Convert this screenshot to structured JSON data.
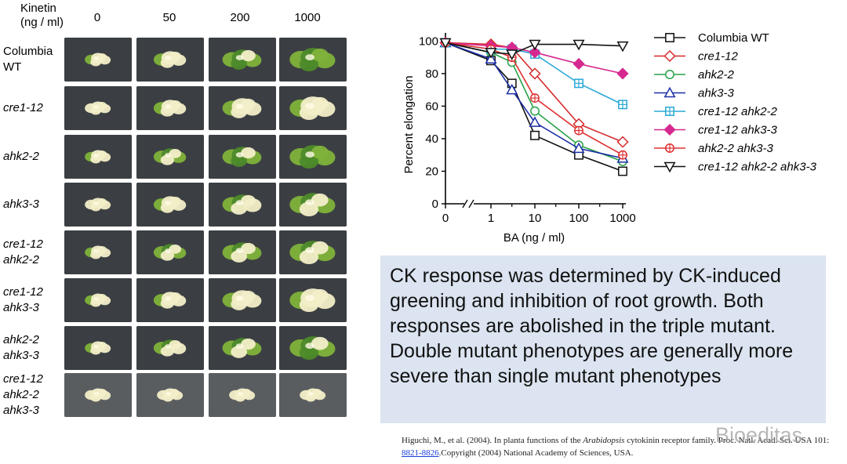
{
  "plate": {
    "header_line1": "Kinetin",
    "header_line2": "(ng / ml)",
    "columns": [
      "0",
      "50",
      "200",
      "1000"
    ],
    "rows": [
      {
        "line1": "Columbia",
        "line2": "WT",
        "italic": false
      },
      {
        "line1": "cre1-12",
        "italic": true
      },
      {
        "line1": "ahk2-2",
        "italic": true
      },
      {
        "line1": "ahk3-3",
        "italic": true
      },
      {
        "line1": "cre1-12",
        "line2": "ahk2-2",
        "italic": true
      },
      {
        "line1": "cre1-12",
        "line2": "ahk3-3",
        "italic": true
      },
      {
        "line1": "ahk2-2",
        "line2": "ahk3-3",
        "italic": true
      },
      {
        "line1": "cre1-12",
        "line2": "ahk2-2",
        "line3": "ahk3-3",
        "italic": true
      }
    ],
    "greening_levels": [
      [
        0.1,
        0.2,
        0.7,
        0.95
      ],
      [
        0.0,
        0.05,
        0.1,
        0.15
      ],
      [
        0.05,
        0.6,
        0.7,
        0.85
      ],
      [
        0.0,
        0.1,
        0.35,
        0.55
      ],
      [
        0.2,
        0.55,
        0.6,
        0.55
      ],
      [
        0.05,
        0.05,
        0.1,
        0.05
      ],
      [
        0.1,
        0.3,
        0.6,
        0.7
      ],
      [
        0.0,
        0.0,
        0.0,
        0.0
      ]
    ]
  },
  "chart_data": {
    "type": "line",
    "xlabel": "BA (ng / ml)",
    "ylabel": "Percent elongation",
    "x_ticks": [
      "0",
      "1",
      "10",
      "100",
      "1000"
    ],
    "y_ticks": [
      "0",
      "20",
      "40",
      "60",
      "80",
      "100"
    ],
    "ylim": [
      0,
      105
    ],
    "x_scale": "log",
    "x": [
      0,
      1,
      3,
      10,
      100,
      1000
    ],
    "series": [
      {
        "name": "Columbia WT",
        "italic": false,
        "color": "#111111",
        "marker": "square",
        "values": [
          99,
          88,
          74,
          42,
          30,
          20
        ]
      },
      {
        "name": "cre1-12",
        "italic": true,
        "color": "#d62a2a",
        "marker": "diamond",
        "values": [
          99,
          98,
          96,
          80,
          49,
          38
        ]
      },
      {
        "name": "ahk2-2",
        "italic": true,
        "color": "#2aa24a",
        "marker": "circle",
        "values": [
          99,
          93,
          87,
          57,
          36,
          26
        ]
      },
      {
        "name": "ahk3-3",
        "italic": true,
        "color": "#1c2fa8",
        "marker": "triangle-up",
        "values": [
          99,
          89,
          70,
          50,
          34,
          28
        ]
      },
      {
        "name": "cre1-12 ahk2-2",
        "italic": true,
        "color": "#2aa8d6",
        "marker": "square-plus",
        "values": [
          99,
          95,
          95,
          92,
          74,
          61
        ]
      },
      {
        "name": "cre1-12 ahk3-3",
        "italic": true,
        "color": "#d6288f",
        "marker": "diamond-filled",
        "values": [
          99,
          97,
          96,
          93,
          86,
          80
        ]
      },
      {
        "name": "ahk2-2 ahk3-3",
        "italic": true,
        "color": "#e03030",
        "marker": "circle-plus",
        "values": [
          99,
          95,
          90,
          65,
          45,
          30
        ]
      },
      {
        "name": "cre1-12 ahk2-2 ahk3-3",
        "italic": true,
        "color": "#111111",
        "marker": "triangle-down",
        "values": [
          99,
          93,
          92,
          98,
          98,
          97
        ]
      }
    ],
    "legend_position": "right",
    "grid": false
  },
  "caption": {
    "text": "CK response was determined by CK-induced greening and inhibition of root growth. Both responses are abolished in the triple mutant. Double mutant phenotypes are generally more severe than single mutant phenotypes"
  },
  "citation": {
    "prefix": "Higuchi, M., et al. (2004). In planta functions of the ",
    "genus": "Arabidopsis",
    "middle": " cytokinin receptor family. Proc. Natl. Acad. Sci. USA 101: ",
    "link": "8821-8826",
    "suffix": ".Copyright (2004) National Academy of Sciences, USA."
  },
  "watermark": "Bioeditas"
}
